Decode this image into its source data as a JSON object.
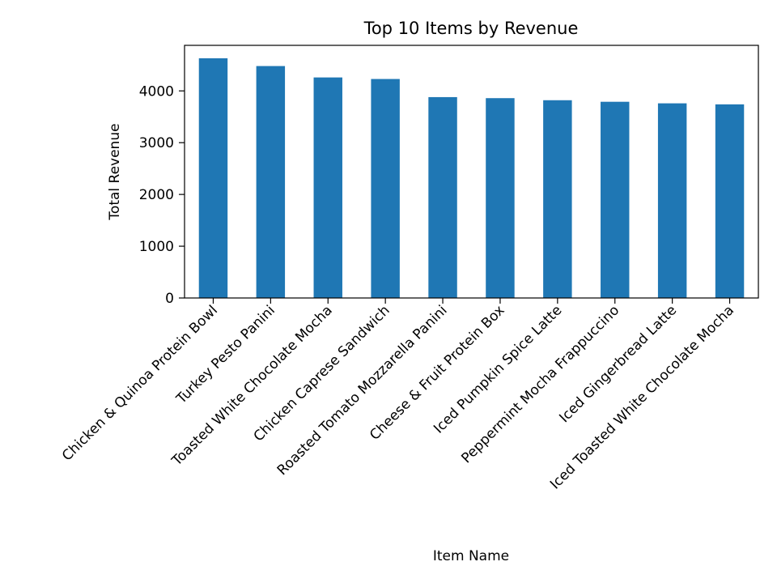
{
  "chart_data": {
    "type": "bar",
    "title": "Top 10 Items by Revenue",
    "xlabel": "Item Name",
    "ylabel": "Total Revenue",
    "categories": [
      "Chicken & Quinoa Protein Bowl",
      "Turkey Pesto Panini",
      "Toasted White Chocolate Mocha",
      "Chicken Caprese Sandwich",
      "Roasted Tomato Mozzarella Panini",
      "Cheese & Fruit Protein Box",
      "Iced Pumpkin Spice Latte",
      "Peppermint Mocha Frappuccino",
      "Iced Gingerbread Latte",
      "Iced Toasted White Chocolate Mocha"
    ],
    "values": [
      4630,
      4480,
      4260,
      4230,
      3880,
      3860,
      3820,
      3790,
      3760,
      3740
    ],
    "ylim": [
      0,
      4880
    ],
    "yticks": [
      0,
      1000,
      2000,
      3000,
      4000
    ],
    "bar_color": "#1f77b4",
    "grid": false,
    "legend": false
  }
}
